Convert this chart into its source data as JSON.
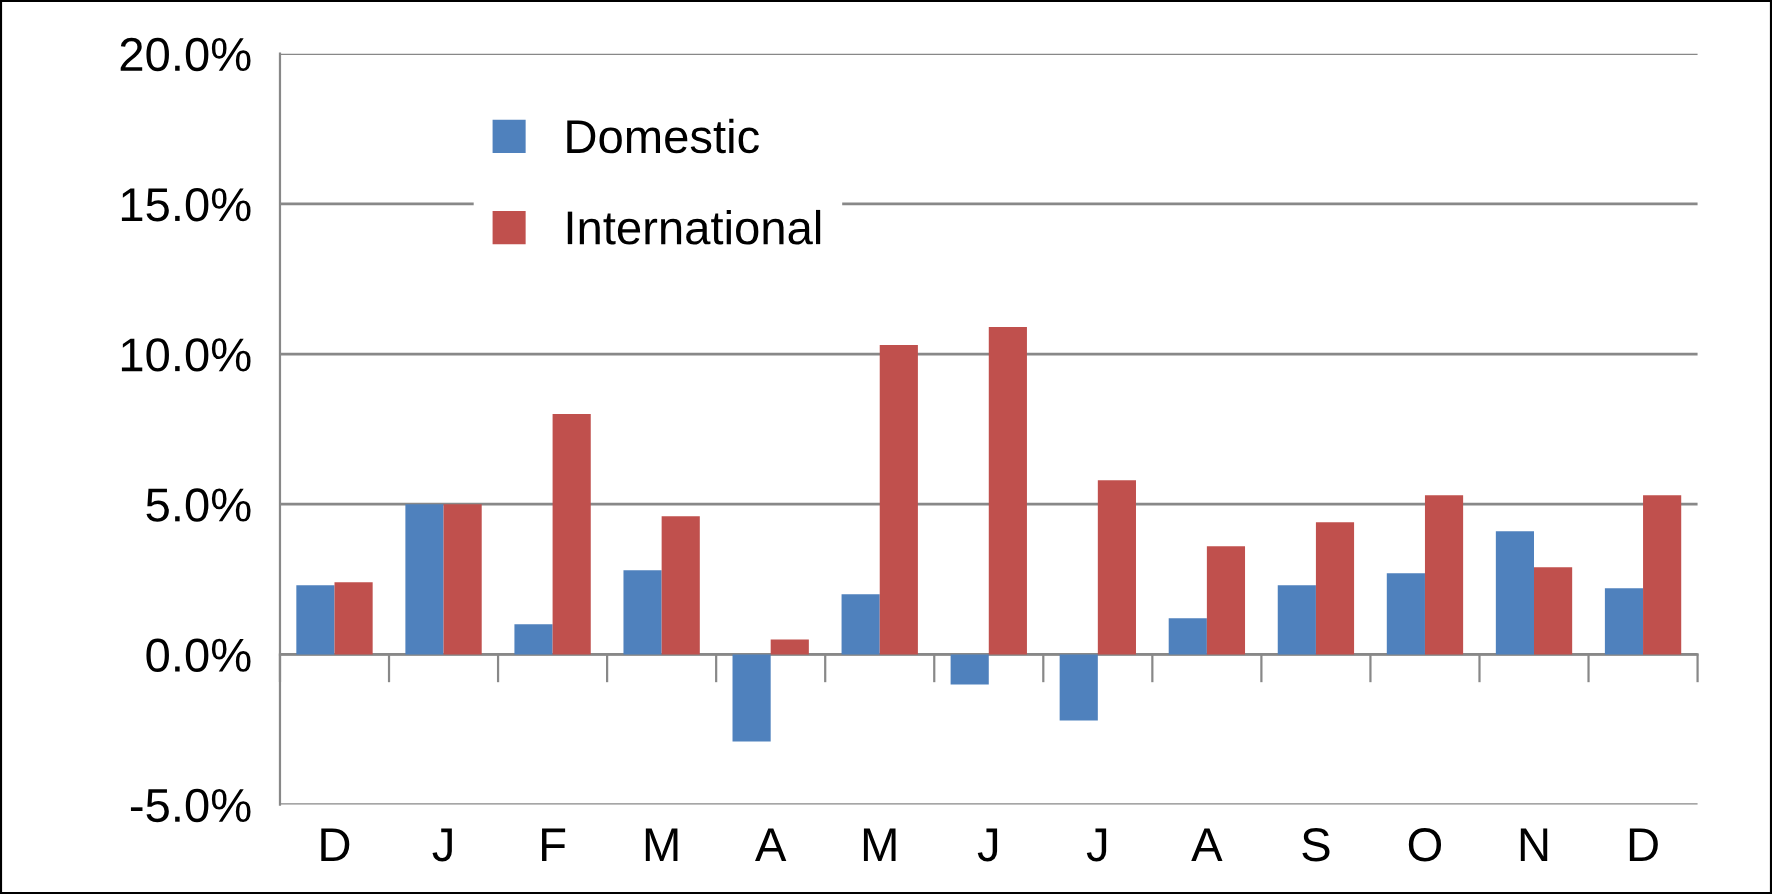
{
  "chart_data": {
    "type": "bar",
    "categories": [
      "D",
      "J",
      "F",
      "M",
      "A",
      "M",
      "J",
      "J",
      "A",
      "S",
      "O",
      "N",
      "D"
    ],
    "series": [
      {
        "name": "Domestic",
        "color": "#4f81bd",
        "values": [
          2.3,
          5.0,
          1.0,
          2.8,
          -2.9,
          2.0,
          -1.0,
          -2.2,
          1.2,
          2.3,
          2.7,
          4.1,
          2.2
        ]
      },
      {
        "name": "International",
        "color": "#c0504d",
        "values": [
          2.4,
          5.0,
          8.0,
          4.6,
          0.5,
          10.3,
          10.9,
          5.8,
          3.6,
          4.4,
          5.3,
          2.9,
          5.3
        ]
      }
    ],
    "ylim": [
      -5,
      20
    ],
    "yticks": [
      {
        "value": -5,
        "label": "-5.0%"
      },
      {
        "value": 0,
        "label": "0.0%"
      },
      {
        "value": 5,
        "label": "5.0%"
      },
      {
        "value": 10,
        "label": "10.0%"
      },
      {
        "value": 15,
        "label": "15.0%"
      },
      {
        "value": 20,
        "label": "20.0%"
      }
    ],
    "grid": "y",
    "legend": "top left"
  }
}
